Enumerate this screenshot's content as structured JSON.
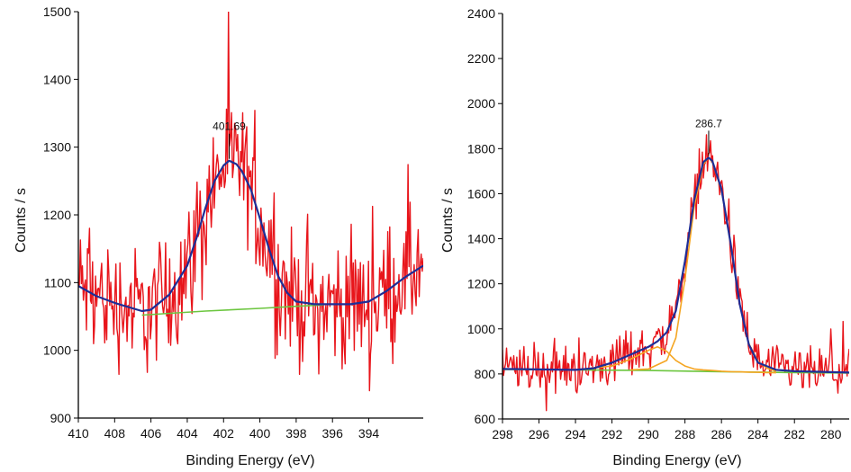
{
  "chart_data": [
    {
      "type": "line",
      "title": "",
      "xlabel": "Binding Energy (eV)",
      "ylabel": "Counts / s",
      "xlim": [
        410,
        391
      ],
      "x_reversed": true,
      "ylim": [
        900,
        1500
      ],
      "x_ticks": [
        410,
        408,
        406,
        404,
        402,
        400,
        398,
        396,
        394
      ],
      "y_ticks": [
        900,
        1000,
        1100,
        1200,
        1300,
        1400,
        1500
      ],
      "grid": false,
      "legend": "none",
      "annotation": {
        "text": "401.69",
        "x": 401.69,
        "y": 1280
      },
      "series": [
        {
          "role": "raw",
          "color": "#e8151b",
          "noise_amplitude": 45,
          "x": [
            410,
            409,
            408,
            407,
            406.5,
            406,
            405,
            404,
            403.5,
            403,
            402.5,
            402,
            401.69,
            401.3,
            401,
            400.5,
            400,
            399.5,
            399,
            398.5,
            398,
            397,
            396,
            395,
            394,
            393,
            392,
            391
          ],
          "values": [
            1095,
            1080,
            1070,
            1062,
            1058,
            1060,
            1082,
            1125,
            1165,
            1210,
            1250,
            1273,
            1280,
            1275,
            1265,
            1238,
            1195,
            1150,
            1110,
            1085,
            1072,
            1068,
            1068,
            1068,
            1072,
            1088,
            1108,
            1125
          ]
        },
        {
          "role": "fit",
          "color": "#1e2d96",
          "x": [
            410,
            409,
            408,
            407,
            406.5,
            406,
            405,
            404,
            403.5,
            403,
            402.5,
            402,
            401.69,
            401.3,
            401,
            400.5,
            400,
            399.5,
            399,
            398.5,
            398,
            397,
            396,
            395,
            394,
            393,
            392,
            391
          ],
          "values": [
            1095,
            1080,
            1070,
            1062,
            1058,
            1060,
            1082,
            1125,
            1165,
            1210,
            1250,
            1273,
            1280,
            1275,
            1265,
            1238,
            1195,
            1150,
            1110,
            1085,
            1072,
            1068,
            1068,
            1068,
            1072,
            1088,
            1108,
            1125
          ]
        },
        {
          "role": "background",
          "color": "#6cc63f",
          "x": [
            406.5,
            403,
            400,
            398,
            396.5
          ],
          "values": [
            1052,
            1058,
            1062,
            1065,
            1067
          ]
        }
      ]
    },
    {
      "type": "line",
      "title": "",
      "xlabel": "Binding Energy (eV)",
      "ylabel": "Counts / s",
      "xlim": [
        298,
        279
      ],
      "x_reversed": true,
      "ylim": [
        600,
        2400
      ],
      "x_ticks": [
        298,
        296,
        294,
        292,
        290,
        288,
        286,
        284,
        282,
        280
      ],
      "y_ticks": [
        600,
        800,
        1000,
        1200,
        1400,
        1600,
        1800,
        2000,
        2200,
        2400
      ],
      "grid": false,
      "legend": "none",
      "annotation": {
        "text": "286.7",
        "x": 286.7,
        "y": 1760
      },
      "series": [
        {
          "role": "raw",
          "color": "#e8151b",
          "noise_amplitude": 50,
          "x": [
            298,
            296,
            294,
            293,
            292,
            291,
            290,
            289.5,
            289,
            288.5,
            288,
            287.5,
            287,
            286.7,
            286.5,
            286,
            285.5,
            285,
            284.5,
            284,
            283,
            282,
            281,
            280,
            279
          ],
          "values": [
            822,
            820,
            818,
            825,
            850,
            885,
            920,
            945,
            985,
            1080,
            1300,
            1570,
            1740,
            1760,
            1745,
            1620,
            1380,
            1110,
            930,
            850,
            818,
            812,
            810,
            808,
            806
          ]
        },
        {
          "role": "fit",
          "color": "#1e2d96",
          "x": [
            298,
            296,
            294,
            293,
            292,
            291,
            290,
            289.5,
            289,
            288.5,
            288,
            287.5,
            287,
            286.7,
            286.5,
            286,
            285.5,
            285,
            284.5,
            284,
            283,
            282,
            281,
            280,
            279
          ],
          "values": [
            822,
            820,
            818,
            825,
            850,
            885,
            920,
            945,
            985,
            1080,
            1300,
            1570,
            1740,
            1760,
            1745,
            1620,
            1380,
            1110,
            930,
            850,
            818,
            812,
            810,
            808,
            806
          ]
        },
        {
          "role": "component",
          "color": "#f5a623",
          "x": [
            294,
            292,
            291,
            290,
            289.5,
            289,
            288.5,
            288,
            287.5,
            287,
            286.5,
            286,
            285.5,
            285,
            284.5,
            284,
            283.5,
            283
          ],
          "values": [
            818,
            835,
            865,
            905,
            920,
            900,
            860,
            835,
            822,
            818,
            815,
            812,
            810,
            809,
            808,
            807,
            806,
            805
          ]
        },
        {
          "role": "component",
          "color": "#f5a623",
          "x": [
            291,
            290,
            289,
            288.5,
            288,
            287.5,
            287,
            286.7,
            286.5,
            286,
            285.5,
            285,
            284.5,
            284,
            283.5,
            283
          ],
          "values": [
            818,
            822,
            860,
            960,
            1220,
            1540,
            1730,
            1760,
            1740,
            1615,
            1380,
            1110,
            935,
            855,
            825,
            812
          ]
        },
        {
          "role": "background",
          "color": "#6cc63f",
          "x": [
            298,
            294,
            290,
            286,
            282,
            279
          ],
          "values": [
            820,
            818,
            815,
            810,
            806,
            804
          ]
        }
      ]
    }
  ]
}
